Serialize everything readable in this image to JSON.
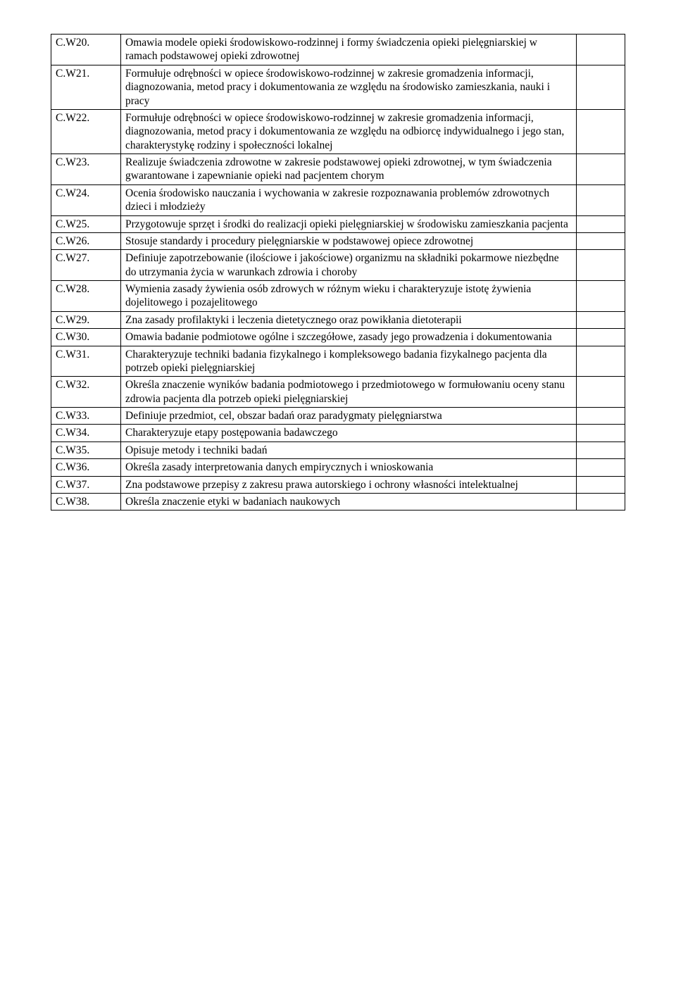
{
  "rows": [
    {
      "code": "C.W20.",
      "desc": "Omawia modele opieki środowiskowo-rodzinnej i formy świadczenia opieki pielęgniarskiej w ramach podstawowej opieki zdrowotnej",
      "justify": false
    },
    {
      "code": "C.W21.",
      "desc": "Formułuje odrębności w opiece środowiskowo-rodzinnej w zakresie gromadzenia informacji, diagnozowania, metod pracy i dokumentowania ze względu na środowisko zamieszkania, nauki i pracy",
      "justify": false
    },
    {
      "code": "C.W22.",
      "desc": "Formułuje odrębności w opiece środowiskowo-rodzinnej w zakresie gromadzenia informacji, diagnozowania, metod pracy i dokumentowania ze względu na odbiorcę indywidualnego i jego stan, charakterystykę rodziny i społeczności lokalnej",
      "justify": false
    },
    {
      "code": "C.W23.",
      "desc": "Realizuje świadczenia zdrowotne w zakresie podstawowej opieki zdrowotnej, w tym świadczenia gwarantowane i zapewnianie opieki nad pacjentem chorym",
      "justify": false
    },
    {
      "code": "C.W24.",
      "desc": "Ocenia środowisko nauczania i wychowania w zakresie rozpoznawania problemów zdrowotnych dzieci i młodzieży\n",
      "justify": false
    },
    {
      "code": "C.W25.",
      "desc": "Przygotowuje sprzęt i środki do realizacji opieki pielęgniarskiej w środowisku zamieszkania pacjenta\n",
      "justify": false
    },
    {
      "code": "C.W26.",
      "desc": "Stosuje standardy i procedury pielęgniarskie w podstawowej opiece zdrowotnej",
      "justify": false
    },
    {
      "code": "C.W27.",
      "desc": "Definiuje zapotrzebowanie (ilościowe i jakościowe) organizmu na składniki pokarmowe niezbędne do utrzymania życia w warunkach zdrowia i choroby",
      "justify": false
    },
    {
      "code": "C.W28.",
      "desc": "Wymienia zasady żywienia osób zdrowych w różnym wieku i charakteryzuje istotę żywienia dojelitowego i pozajelitowego\n",
      "justify": false
    },
    {
      "code": "C.W29.",
      "desc": "Zna zasady profilaktyki i leczenia dietetycznego oraz powikłania dietoterapii",
      "justify": false
    },
    {
      "code": "C.W30.",
      "desc": "Omawia badanie podmiotowe ogólne i szczegółowe, zasady jego prowadzenia i dokumentowania\n",
      "justify": true
    },
    {
      "code": "C.W31.",
      "desc": "Charakteryzuje techniki badania fizykalnego i kompleksowego badania fizykalnego pacjenta dla potrzeb opieki pielęgniarskiej\n",
      "justify": false
    },
    {
      "code": "C.W32.",
      "desc": "Określa znaczenie wyników badania podmiotowego i przedmiotowego w formułowaniu oceny stanu zdrowia pacjenta dla potrzeb opieki pielęgniarskiej",
      "justify": false
    },
    {
      "code": "C.W33.",
      "desc": "Definiuje przedmiot, cel, obszar badań oraz paradygmaty pielęgniarstwa",
      "justify": false
    },
    {
      "code": "C.W34.",
      "desc": "Charakteryzuje etapy postępowania badawczego\n",
      "justify": false
    },
    {
      "code": "C.W35.",
      "desc": "Opisuje metody i techniki badań\n",
      "justify": false
    },
    {
      "code": "C.W36.",
      "desc": "Określa zasady interpretowania danych empirycznych i wnioskowania",
      "justify": false
    },
    {
      "code": "C.W37.",
      "desc": "Zna podstawowe przepisy z zakresu prawa autorskiego i ochrony własności intelektualnej",
      "justify": true
    },
    {
      "code": "C.W38.",
      "desc": "Określa znaczenie etyki w badaniach naukowych",
      "justify": false
    }
  ]
}
